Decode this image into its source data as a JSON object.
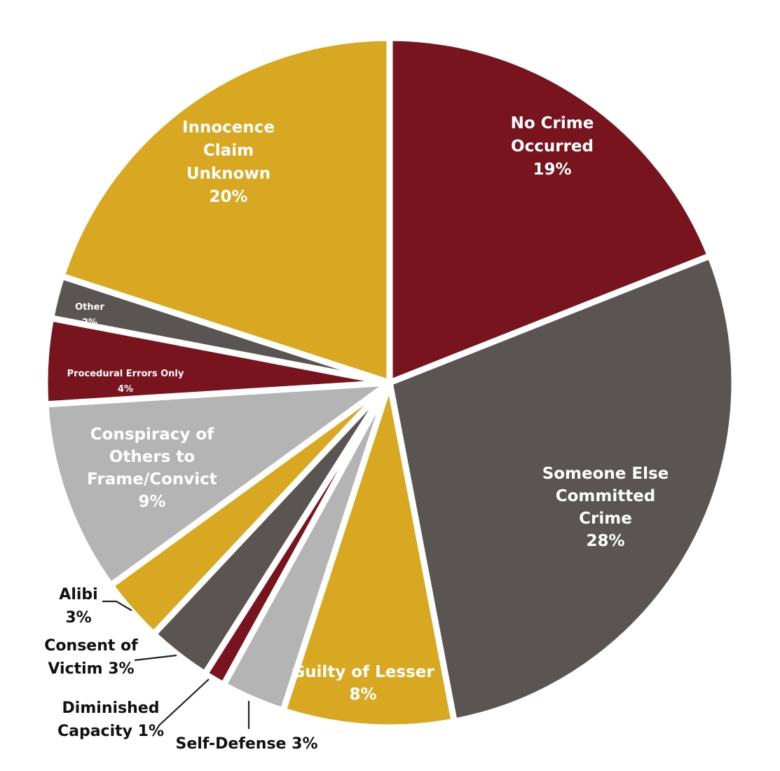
{
  "chart_data": {
    "type": "pie",
    "title": "",
    "slices": [
      {
        "label": "No Crime Occurred",
        "value": 19,
        "display": "19%",
        "color": "#78141e",
        "label_color": "#ffffff",
        "label_mode": "inside-large",
        "label_lines": [
          "No Crime",
          "Occurred",
          "19%"
        ]
      },
      {
        "label": "Someone Else Committed Crime",
        "value": 28,
        "display": "28%",
        "color": "#5a5553",
        "label_color": "#ffffff",
        "label_mode": "inside-large",
        "label_lines": [
          "Someone Else",
          "Committed",
          "Crime",
          "28%"
        ]
      },
      {
        "label": "Guilty of Lesser",
        "value": 8,
        "display": "8%",
        "color": "#d9a823",
        "label_color": "#ffffff",
        "label_mode": "inside-large",
        "label_lines": [
          "Guilty of Lesser",
          "8%"
        ]
      },
      {
        "label": "Self-Defense",
        "value": 3,
        "display": "3%",
        "color": "#b4b4b4",
        "label_color": "#111111",
        "label_mode": "outside",
        "label_lines": [
          "Self-Defense 3%"
        ]
      },
      {
        "label": "Diminished Capacity",
        "value": 1,
        "display": "1%",
        "color": "#78141e",
        "label_color": "#111111",
        "label_mode": "outside",
        "label_lines": [
          "Diminished",
          "Capacity 1%"
        ]
      },
      {
        "label": "Consent of Victim",
        "value": 3,
        "display": "3%",
        "color": "#5a5553",
        "label_color": "#111111",
        "label_mode": "outside",
        "label_lines": [
          "Consent of",
          "Victim 3%"
        ]
      },
      {
        "label": "Alibi",
        "value": 3,
        "display": "3%",
        "color": "#d9a823",
        "label_color": "#111111",
        "label_mode": "outside",
        "label_lines": [
          "Alibi",
          "3%"
        ]
      },
      {
        "label": "Conspiracy of Others to Frame/Convict",
        "value": 9,
        "display": "9%",
        "color": "#b4b4b4",
        "label_color": "#ffffff",
        "label_mode": "inside-large",
        "label_lines": [
          "Conspiracy of",
          "Others to",
          "Frame/Convict",
          "9%"
        ]
      },
      {
        "label": "Procedural Errors Only",
        "value": 4,
        "display": "4%",
        "color": "#78141e",
        "label_color": "#ffffff",
        "label_mode": "inside-small",
        "label_lines": [
          "Procedural Errors Only",
          "4%"
        ]
      },
      {
        "label": "Other",
        "value": 2,
        "display": "2%",
        "color": "#5a5553",
        "label_color": "#ffffff",
        "label_mode": "inside-small",
        "label_lines": [
          "Other",
          "2%"
        ]
      },
      {
        "label": "Innocence Claim Unknown",
        "value": 20,
        "display": "20%",
        "color": "#d9a823",
        "label_color": "#ffffff",
        "label_mode": "inside-large",
        "label_lines": [
          "Innocence",
          "Claim",
          "Unknown",
          "20%"
        ]
      }
    ],
    "start_angle": "12 o'clock",
    "direction": "clockwise",
    "legend": "none"
  }
}
